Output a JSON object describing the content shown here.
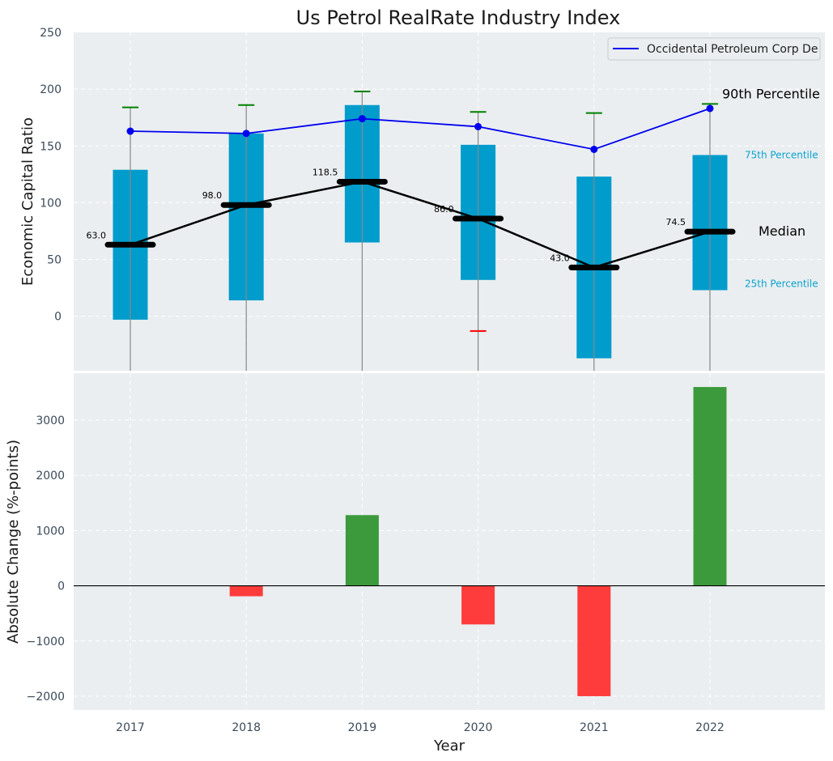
{
  "colors": {
    "plot_bg": "#eaeef0",
    "box_fill": "#009ccc",
    "whisker_line": "#888888",
    "whisker_top": "#008000",
    "whisker_bottom": "#ff0000",
    "company_line": "#0000ee",
    "median_marker": "#000000",
    "bar_positive": "#3c9a3c",
    "bar_negative": "#ff3c3c",
    "annotation_blue": "#0aa4d0"
  },
  "chart_data": [
    {
      "type": "box",
      "title": "Us Petrol RealRate Industry Index",
      "xlabel": "",
      "ylabel": "Economic Capital Ratio",
      "ylim": [
        -48,
        250
      ],
      "yticks": [
        0,
        50,
        100,
        150,
        200,
        250
      ],
      "grid": true,
      "categories": [
        "2017",
        "2018",
        "2019",
        "2020",
        "2021",
        "2022"
      ],
      "boxes": [
        {
          "year": "2017",
          "p25": -3,
          "p75": 129,
          "median": 63.0,
          "p90": 184,
          "p10": null,
          "median_label": "63.0"
        },
        {
          "year": "2018",
          "p25": 14,
          "p75": 161,
          "median": 98.0,
          "p90": 186,
          "p10": null,
          "median_label": "98.0"
        },
        {
          "year": "2019",
          "p25": 65,
          "p75": 186,
          "median": 118.5,
          "p90": 198,
          "p10": null,
          "median_label": "118.5"
        },
        {
          "year": "2020",
          "p25": 32,
          "p75": 151,
          "median": 86.0,
          "p90": 180,
          "p10": -13,
          "median_label": "86.0"
        },
        {
          "year": "2021",
          "p25": -37,
          "p75": 123,
          "median": 43.0,
          "p90": 179,
          "p10": null,
          "median_label": "43.0"
        },
        {
          "year": "2022",
          "p25": 23,
          "p75": 142,
          "median": 74.5,
          "p90": 187,
          "p10": null,
          "median_label": "74.5"
        }
      ],
      "series": [
        {
          "name": "Occidental Petroleum Corp De",
          "values": [
            163,
            161,
            174,
            167,
            147,
            183
          ]
        }
      ],
      "legend": {
        "entries": [
          "Occidental Petroleum Corp De"
        ],
        "placement": "top-right"
      },
      "annotations": {
        "p90": "90th Percentile",
        "p75": "75th Percentile",
        "median": "Median",
        "p25": "25th Percentile"
      }
    },
    {
      "type": "bar",
      "xlabel": "Year",
      "ylabel": "Absolute Change (%-points)",
      "ylim": [
        -2250,
        3850
      ],
      "yticks": [
        -2000,
        -1000,
        0,
        1000,
        2000,
        3000
      ],
      "ytick_labels": [
        "−2000",
        "−1000",
        "0",
        "1000",
        "2000",
        "3000"
      ],
      "grid": true,
      "categories": [
        "2017",
        "2018",
        "2019",
        "2020",
        "2021",
        "2022"
      ],
      "values": [
        0,
        -190,
        1280,
        -700,
        -2000,
        3600
      ]
    }
  ]
}
